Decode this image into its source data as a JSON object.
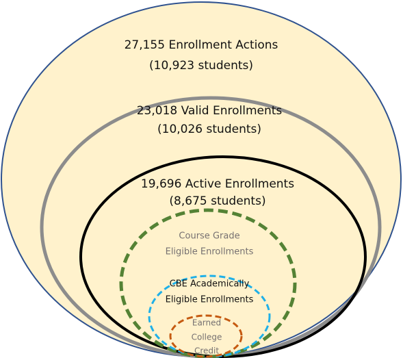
{
  "nodes": [
    {
      "lines": [
        "27,155 Enrollment Actions",
        "(10,923 students)"
      ]
    },
    {
      "lines": [
        "23,018 Valid Enrollments",
        "(10,026 students)"
      ]
    },
    {
      "lines": [
        "19,696 Active Enrollments",
        "(8,675 students)"
      ]
    },
    {
      "lines": [
        "Course Grade",
        "Eligible Enrollments"
      ]
    },
    {
      "lines": [
        "CBE Academically",
        "Eligible Enrollments"
      ]
    },
    {
      "lines": [
        "Earned",
        "College",
        "Credit"
      ]
    }
  ]
}
